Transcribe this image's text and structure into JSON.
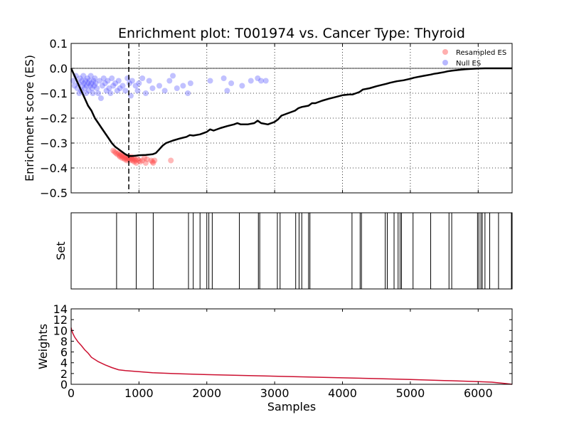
{
  "chart_data": [
    {
      "type": "line",
      "title": "Enrichment plot: T001974 vs. Cancer Type: Thyroid",
      "xlabel": "",
      "ylabel": "Enrichment score (ES)",
      "xlim": [
        0,
        6500
      ],
      "ylim": [
        -0.5,
        0.1
      ],
      "grid": true,
      "legend_position": "top-right",
      "yticks": [
        "0.1",
        "0.0",
        "−0.1",
        "−0.2",
        "−0.3",
        "−0.4",
        "−0.5"
      ],
      "ytick_values": [
        0.1,
        0.0,
        -0.1,
        -0.2,
        -0.3,
        -0.4,
        -0.5
      ],
      "xticks": [
        1000,
        2000,
        3000,
        4000,
        5000,
        6000
      ],
      "leading_edge_x": 850,
      "colors": {
        "es_line": "#000000",
        "resampled": "#ff4d4d",
        "null": "#4d4dff"
      },
      "series": [
        {
          "name": "",
          "style": "line",
          "x": [
            0,
            50,
            100,
            150,
            200,
            250,
            300,
            350,
            400,
            450,
            500,
            550,
            600,
            650,
            700,
            750,
            800,
            850,
            900,
            950,
            1000,
            1100,
            1200,
            1250,
            1300,
            1350,
            1400,
            1500,
            1600,
            1700,
            1750,
            1800,
            1900,
            2000,
            2050,
            2100,
            2200,
            2300,
            2400,
            2450,
            2500,
            2600,
            2700,
            2750,
            2800,
            2900,
            3000,
            3050,
            3100,
            3200,
            3300,
            3350,
            3400,
            3500,
            3550,
            3600,
            3700,
            3800,
            3900,
            4000,
            4100,
            4150,
            4200,
            4250,
            4300,
            4400,
            4500,
            4600,
            4650,
            4700,
            4800,
            4900,
            5000,
            5050,
            5100,
            5200,
            5300,
            5350,
            5400,
            5500,
            5550,
            5600,
            5700,
            5800,
            5900,
            6000,
            6100,
            6200,
            6300,
            6400,
            6500
          ],
          "y": [
            0.0,
            -0.03,
            -0.06,
            -0.09,
            -0.12,
            -0.15,
            -0.17,
            -0.2,
            -0.22,
            -0.24,
            -0.26,
            -0.28,
            -0.3,
            -0.315,
            -0.325,
            -0.335,
            -0.345,
            -0.352,
            -0.352,
            -0.351,
            -0.349,
            -0.348,
            -0.345,
            -0.34,
            -0.325,
            -0.31,
            -0.3,
            -0.29,
            -0.282,
            -0.275,
            -0.268,
            -0.27,
            -0.265,
            -0.255,
            -0.245,
            -0.25,
            -0.24,
            -0.232,
            -0.225,
            -0.22,
            -0.225,
            -0.225,
            -0.22,
            -0.21,
            -0.22,
            -0.225,
            -0.215,
            -0.205,
            -0.19,
            -0.18,
            -0.17,
            -0.16,
            -0.155,
            -0.15,
            -0.14,
            -0.14,
            -0.13,
            -0.122,
            -0.115,
            -0.108,
            -0.105,
            -0.105,
            -0.1,
            -0.095,
            -0.085,
            -0.08,
            -0.072,
            -0.065,
            -0.062,
            -0.058,
            -0.052,
            -0.048,
            -0.042,
            -0.038,
            -0.035,
            -0.03,
            -0.025,
            -0.022,
            -0.02,
            -0.015,
            -0.012,
            -0.01,
            -0.007,
            -0.004,
            -0.002,
            -0.001,
            0.0,
            0.0,
            0.0,
            0.0,
            0.0
          ]
        },
        {
          "name": "Resampled ES",
          "style": "scatter",
          "x": [
            620,
            640,
            660,
            680,
            700,
            710,
            720,
            730,
            740,
            750,
            760,
            770,
            780,
            790,
            800,
            810,
            820,
            830,
            840,
            850,
            860,
            870,
            880,
            890,
            900,
            910,
            920,
            930,
            940,
            950,
            960,
            980,
            1000,
            1020,
            1050,
            1080,
            1100,
            1120,
            1180,
            1200,
            1210,
            1230,
            1470
          ],
          "y": [
            -0.33,
            -0.335,
            -0.34,
            -0.345,
            -0.34,
            -0.35,
            -0.355,
            -0.345,
            -0.35,
            -0.36,
            -0.355,
            -0.35,
            -0.36,
            -0.365,
            -0.355,
            -0.36,
            -0.37,
            -0.365,
            -0.36,
            -0.355,
            -0.365,
            -0.37,
            -0.36,
            -0.355,
            -0.365,
            -0.37,
            -0.36,
            -0.375,
            -0.365,
            -0.37,
            -0.38,
            -0.365,
            -0.37,
            -0.375,
            -0.37,
            -0.36,
            -0.38,
            -0.365,
            -0.37,
            -0.375,
            -0.38,
            -0.37,
            -0.37
          ]
        },
        {
          "name": "Null ES",
          "style": "scatter",
          "x": [
            30,
            50,
            70,
            90,
            110,
            120,
            130,
            150,
            160,
            170,
            180,
            190,
            200,
            210,
            220,
            230,
            240,
            250,
            260,
            270,
            280,
            290,
            300,
            310,
            320,
            330,
            340,
            350,
            360,
            380,
            400,
            420,
            440,
            460,
            480,
            500,
            520,
            540,
            560,
            580,
            600,
            620,
            650,
            680,
            700,
            720,
            760,
            800,
            830,
            860,
            880,
            900,
            950,
            980,
            1000,
            1050,
            1100,
            1150,
            1200,
            1300,
            1380,
            1450,
            1500,
            1560,
            1650,
            1720,
            1760,
            2050,
            2250,
            2300,
            2360,
            2520,
            2650,
            2750,
            2800,
            2870
          ],
          "y": [
            -0.05,
            -0.07,
            -0.03,
            -0.08,
            -0.06,
            -0.1,
            -0.04,
            -0.09,
            -0.05,
            -0.07,
            -0.03,
            -0.06,
            -0.08,
            -0.05,
            -0.1,
            -0.07,
            -0.04,
            -0.06,
            -0.09,
            -0.05,
            -0.07,
            -0.03,
            -0.06,
            -0.08,
            -0.1,
            -0.05,
            -0.07,
            -0.04,
            -0.06,
            -0.08,
            -0.1,
            -0.05,
            -0.12,
            -0.07,
            -0.04,
            -0.06,
            -0.09,
            -0.05,
            -0.08,
            -0.1,
            -0.04,
            -0.07,
            -0.06,
            -0.09,
            -0.05,
            -0.08,
            -0.07,
            -0.09,
            -0.04,
            -0.06,
            -0.11,
            -0.05,
            -0.07,
            -0.09,
            -0.06,
            -0.04,
            -0.1,
            -0.05,
            -0.08,
            -0.07,
            -0.09,
            -0.05,
            -0.03,
            -0.08,
            -0.07,
            -0.1,
            -0.06,
            -0.05,
            -0.04,
            -0.09,
            -0.06,
            -0.07,
            -0.05,
            -0.04,
            -0.05,
            -0.05
          ]
        }
      ]
    },
    {
      "type": "barcode",
      "title": "",
      "xlabel": "",
      "ylabel": "Set",
      "xlim": [
        0,
        6500
      ],
      "grid": false,
      "hits": [
        670,
        960,
        1210,
        1730,
        1800,
        1900,
        2000,
        2030,
        2080,
        2480,
        2760,
        2780,
        3040,
        3080,
        3310,
        3360,
        3400,
        3500,
        3520,
        4140,
        4260,
        4280,
        4630,
        4660,
        4760,
        4820,
        4850,
        4870,
        5040,
        5300,
        5570,
        5610,
        5990,
        6010,
        6040,
        6060,
        6100,
        6170,
        6300,
        6490
      ]
    },
    {
      "type": "line",
      "title": "",
      "xlabel": "Samples",
      "ylabel": "Weights",
      "xlim": [
        0,
        6500
      ],
      "ylim": [
        0,
        14
      ],
      "grid": false,
      "yticks": [
        "0",
        "2",
        "4",
        "6",
        "8",
        "10",
        "12",
        "14"
      ],
      "ytick_values": [
        0,
        2,
        4,
        6,
        8,
        10,
        12,
        14
      ],
      "xticks": [
        0,
        1000,
        2000,
        3000,
        4000,
        5000,
        6000
      ],
      "color": "#cc1030",
      "series": [
        {
          "name": "",
          "x": [
            0,
            20,
            50,
            100,
            150,
            200,
            250,
            300,
            400,
            500,
            600,
            700,
            800,
            1000,
            1200,
            1500,
            2000,
            2500,
            3000,
            3500,
            4000,
            4500,
            5000,
            5500,
            6000,
            6200,
            6400,
            6500
          ],
          "y": [
            10.5,
            9.6,
            8.8,
            7.9,
            7.2,
            6.4,
            5.8,
            5.0,
            4.2,
            3.6,
            3.1,
            2.7,
            2.55,
            2.35,
            2.15,
            2.0,
            1.8,
            1.65,
            1.5,
            1.35,
            1.2,
            1.05,
            0.9,
            0.7,
            0.5,
            0.4,
            0.15,
            0.0
          ]
        }
      ]
    }
  ]
}
